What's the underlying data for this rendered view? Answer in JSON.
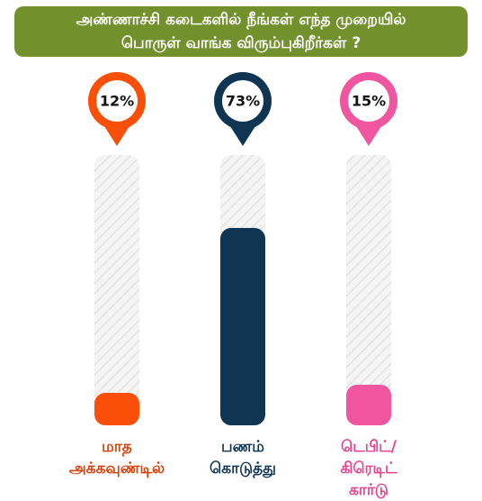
{
  "chart_data": {
    "type": "bar",
    "title": "அண்ணாச்சி கடைகளில் நீங்கள் எந்த முறையில் பொருள் வாங்க விரும்புகிறீர்கள் ?",
    "categories": [
      "மாத அக்கவுண்டில்",
      "பணம் கொடுத்து",
      "டெபிட்/கிரெடிட் கார்டு"
    ],
    "values": [
      12,
      73,
      15
    ],
    "value_labels": [
      "12%",
      "73%",
      "15%"
    ],
    "colors": [
      "#fa4f08",
      "#0f3553",
      "#f2559f"
    ],
    "label_colors": [
      "#d9400a",
      "#0f3553",
      "#e8418f"
    ],
    "title_color": "#72912c",
    "ylim": [
      0,
      100
    ]
  }
}
